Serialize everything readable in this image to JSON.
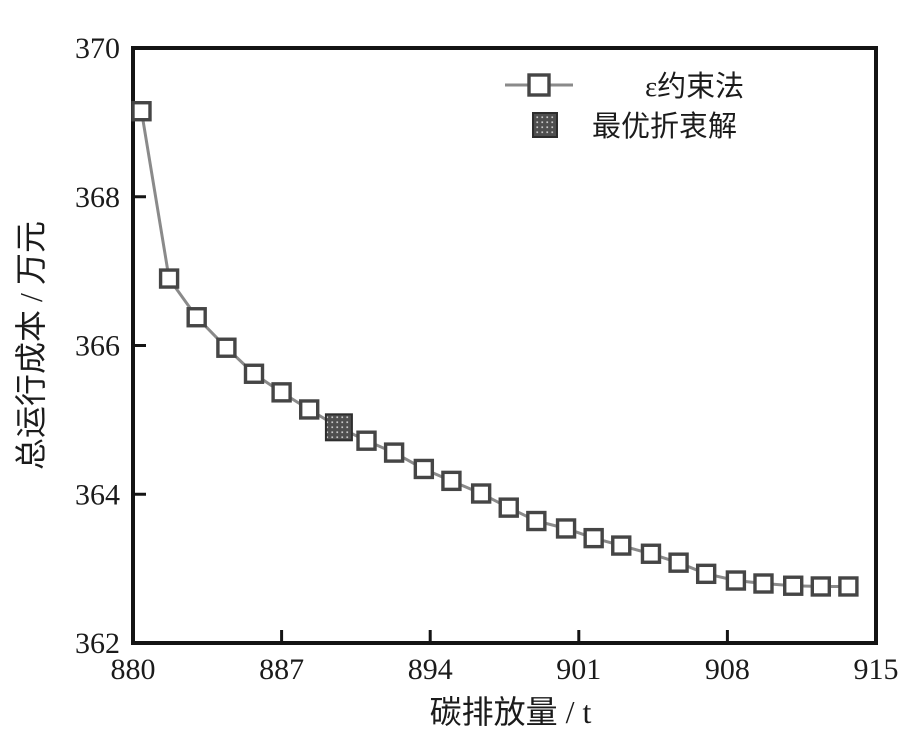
{
  "figure": {
    "background": "#ffffff",
    "axis_color": "#141414",
    "text_color": "#1b1b1b"
  },
  "chart_data": {
    "type": "line",
    "title": "",
    "xlabel": "碳排放量 / t",
    "ylabel": "总运行成本 / 万元",
    "xlim": [
      880,
      915
    ],
    "ylim": [
      362,
      370
    ],
    "xticks": [
      880,
      887,
      894,
      901,
      908,
      915
    ],
    "yticks": [
      362,
      364,
      366,
      368,
      370
    ],
    "grid": false,
    "legend": {
      "position": "inside-top-center",
      "border": false
    },
    "series": [
      {
        "name": "ε约束法",
        "type": "line+marker",
        "marker": "open-square",
        "line_color": "#8a8a8a",
        "marker_edge_color": "#454545",
        "marker_fill": "#ffffff",
        "points": [
          [
            880.4,
            369.15
          ],
          [
            881.7,
            366.9
          ],
          [
            883.0,
            366.38
          ],
          [
            884.4,
            365.97
          ],
          [
            885.7,
            365.62
          ],
          [
            887.0,
            365.37
          ],
          [
            888.3,
            365.14
          ],
          [
            889.7,
            364.9
          ],
          [
            891.0,
            364.72
          ],
          [
            892.3,
            364.56
          ],
          [
            893.7,
            364.34
          ],
          [
            895.0,
            364.18
          ],
          [
            896.4,
            364.01
          ],
          [
            897.7,
            363.82
          ],
          [
            899.0,
            363.64
          ],
          [
            900.4,
            363.54
          ],
          [
            901.7,
            363.41
          ],
          [
            903.0,
            363.31
          ],
          [
            904.4,
            363.2
          ],
          [
            905.7,
            363.08
          ],
          [
            907.0,
            362.93
          ],
          [
            908.4,
            362.84
          ],
          [
            909.7,
            362.8
          ],
          [
            911.1,
            362.77
          ],
          [
            912.4,
            362.76
          ],
          [
            913.7,
            362.76
          ]
        ]
      },
      {
        "name": "最优折衷解",
        "type": "single-marker",
        "marker": "filled-square",
        "color": "#4f4f4f",
        "points": [
          [
            889.7,
            364.9
          ]
        ]
      }
    ]
  }
}
